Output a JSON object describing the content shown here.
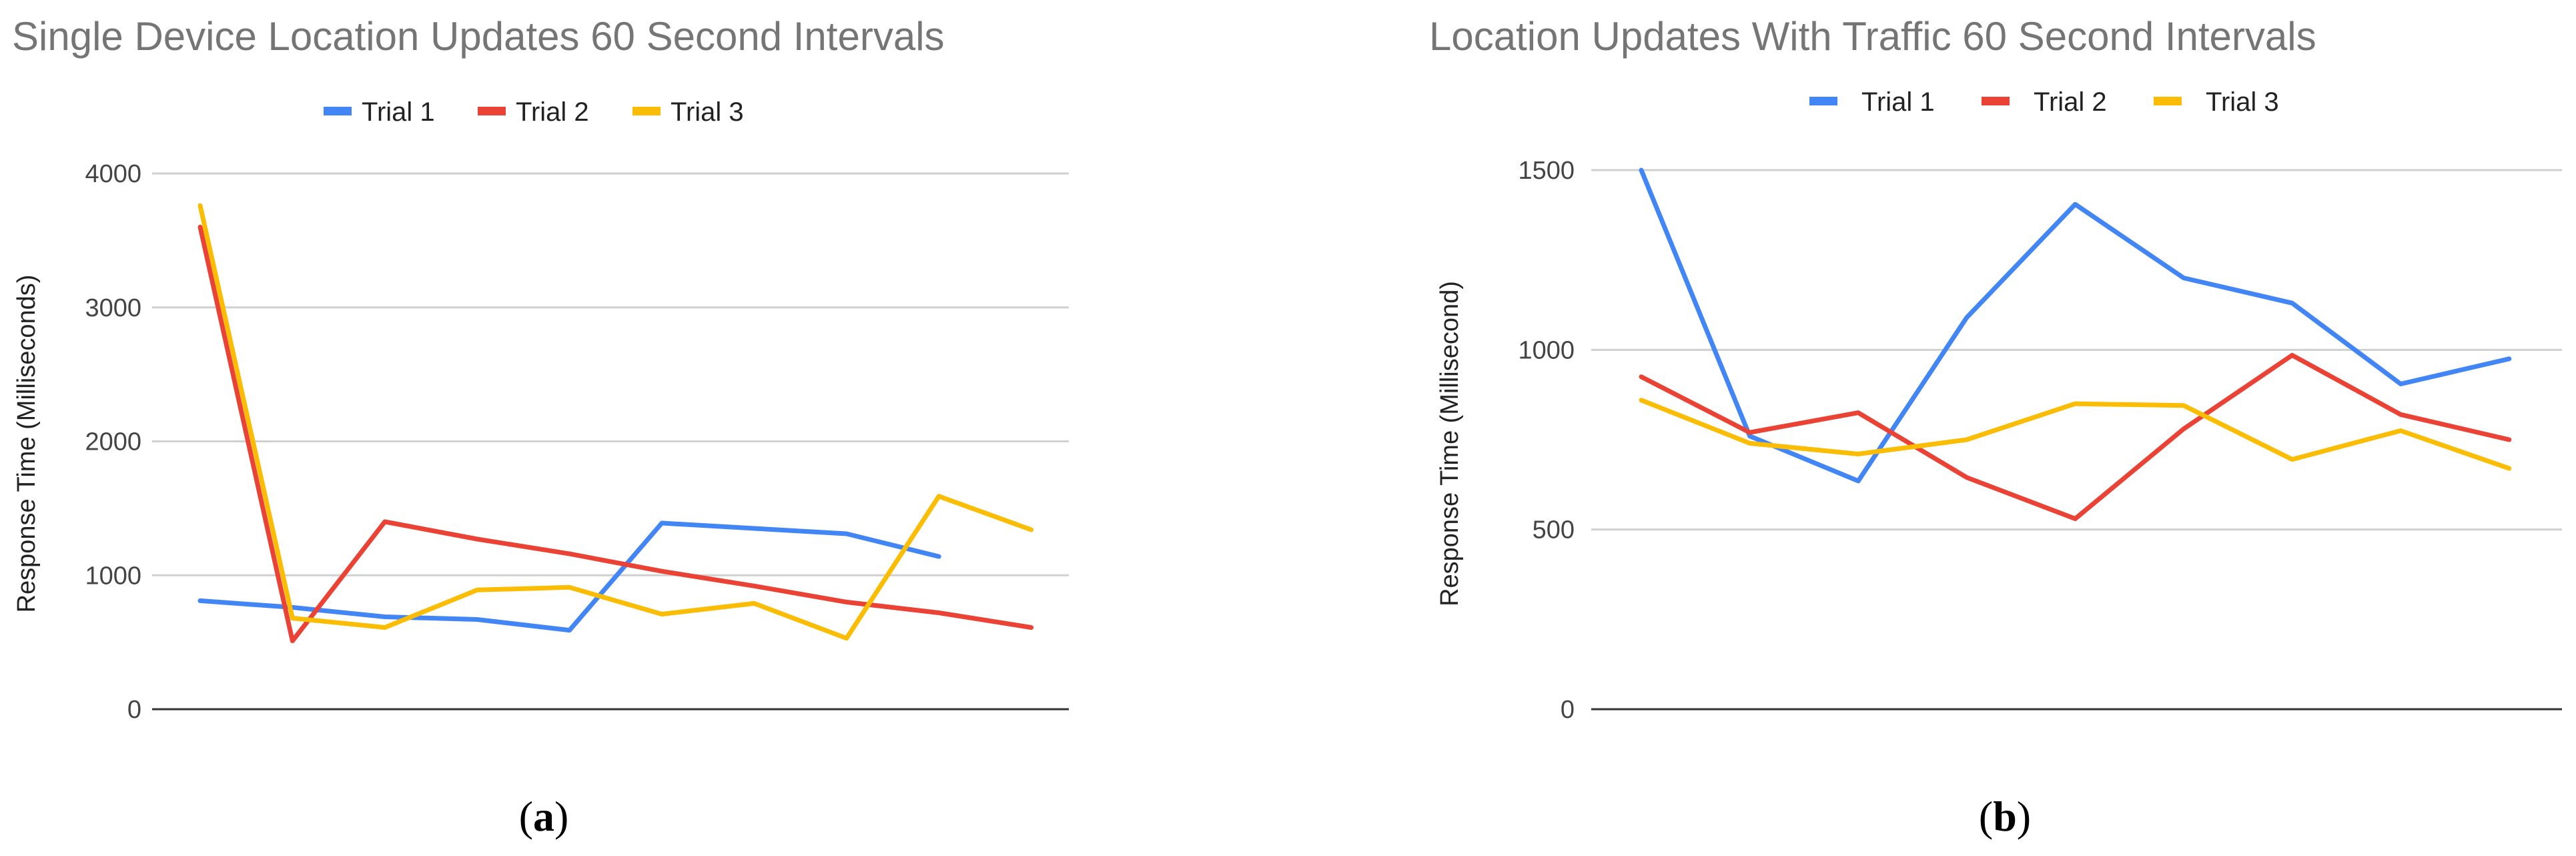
{
  "chart_data": [
    {
      "type": "line",
      "title": "Single Device Location Updates 60 Second Intervals",
      "ylabel": "Response Time (Milliseconds)",
      "xlabel": "",
      "ylim": [
        0,
        4000
      ],
      "yticks": [
        "0",
        "1000",
        "2000",
        "3000",
        "4000"
      ],
      "ytick_values": [
        0,
        1000,
        2000,
        3000,
        4000
      ],
      "grid": true,
      "legend": "top",
      "x": [
        1,
        2,
        3,
        4,
        5,
        6,
        7,
        8,
        9,
        10
      ],
      "series": [
        {
          "name": "Trial 1",
          "color": "#4285f4",
          "values": [
            810,
            760,
            690,
            670,
            590,
            1390,
            1350,
            1310,
            1140,
            null
          ]
        },
        {
          "name": "Trial 2",
          "color": "#ea4335",
          "values": [
            3600,
            510,
            1400,
            1270,
            1160,
            1030,
            920,
            800,
            720,
            610
          ]
        },
        {
          "name": "Trial 3",
          "color": "#fbbc04",
          "values": [
            3760,
            680,
            610,
            890,
            910,
            710,
            790,
            530,
            1590,
            1340
          ]
        }
      ],
      "panel_label": "a"
    },
    {
      "type": "line",
      "title": "Location Updates With Traffic 60 Second Intervals",
      "ylabel": "Response Time (Millisecond)",
      "xlabel": "",
      "ylim": [
        0,
        1500
      ],
      "yticks": [
        "0",
        "500",
        "1000",
        "1500"
      ],
      "ytick_values": [
        0,
        500,
        1000,
        1500
      ],
      "grid": true,
      "legend": "top",
      "x": [
        1,
        2,
        3,
        4,
        5,
        6,
        7,
        8,
        9
      ],
      "series": [
        {
          "name": "Trial 1",
          "color": "#4285f4",
          "values": [
            1500,
            760,
            635,
            1090,
            1405,
            1200,
            1130,
            905,
            975
          ]
        },
        {
          "name": "Trial 2",
          "color": "#ea4335",
          "values": [
            925,
            770,
            825,
            645,
            530,
            780,
            985,
            820,
            750
          ]
        },
        {
          "name": "Trial 3",
          "color": "#fbbc04",
          "values": [
            860,
            740,
            710,
            750,
            850,
            845,
            695,
            775,
            670
          ]
        }
      ],
      "panel_label": "b"
    }
  ]
}
